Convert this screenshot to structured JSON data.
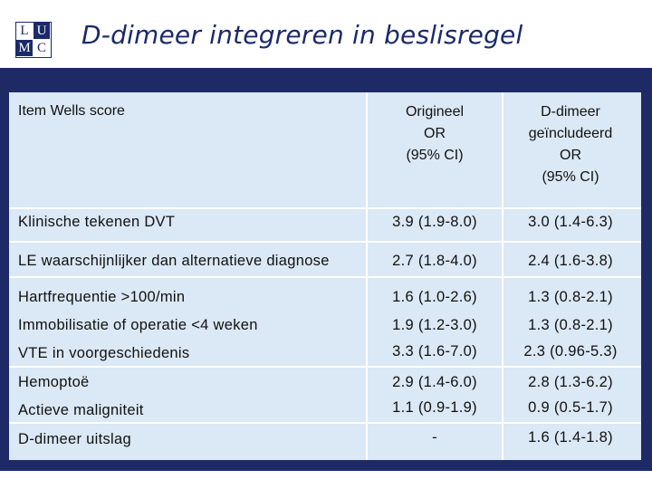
{
  "logo": {
    "letters": [
      "L",
      "U",
      "M",
      "C"
    ]
  },
  "title": "D-dimeer integreren in beslisregel",
  "colors": {
    "panel": "#1e2a66",
    "table_bg": "#dbe8f5",
    "title": "#1b2a6b"
  },
  "table": {
    "headers": {
      "item": "Item Wells score",
      "original": [
        "Origineel",
        "OR",
        "(95% CI)"
      ],
      "ddimer": [
        "D-dimeer",
        "geïncludeerd",
        "OR",
        "(95% CI)"
      ]
    },
    "rows": [
      {
        "label": "Klinische tekenen DVT",
        "original": "3.9 (1.9-8.0)",
        "ddimer": "3.0 (1.4-6.3)"
      },
      {
        "label": "LE waarschijnlijker dan alternatieve diagnose",
        "original": "2.7 (1.8-4.0)",
        "ddimer": "2.4 (1.6-3.8)"
      },
      {
        "label": "Hartfrequentie >100/min",
        "original": "1.6 (1.0-2.6)",
        "ddimer": "1.3 (0.8-2.1)"
      },
      {
        "label": "Immobilisatie of operatie <4 weken",
        "original": "1.9 (1.2-3.0)",
        "ddimer": "1.3 (0.8-2.1)"
      },
      {
        "label": "VTE in voorgeschiedenis",
        "original": "3.3 (1.6-7.0)",
        "ddimer": "2.3 (0.96-5.3)"
      },
      {
        "label": "Hemoptoë",
        "original": "2.9 (1.4-6.0)",
        "ddimer": "2.8 (1.3-6.2)"
      },
      {
        "label": "Actieve maligniteit",
        "original": "1.1 (0.9-1.9)",
        "ddimer": "0.9 (0.5-1.7)"
      },
      {
        "label": "D-dimeer uitslag",
        "original": "-",
        "ddimer": "1.6 (1.4-1.8)"
      }
    ]
  }
}
